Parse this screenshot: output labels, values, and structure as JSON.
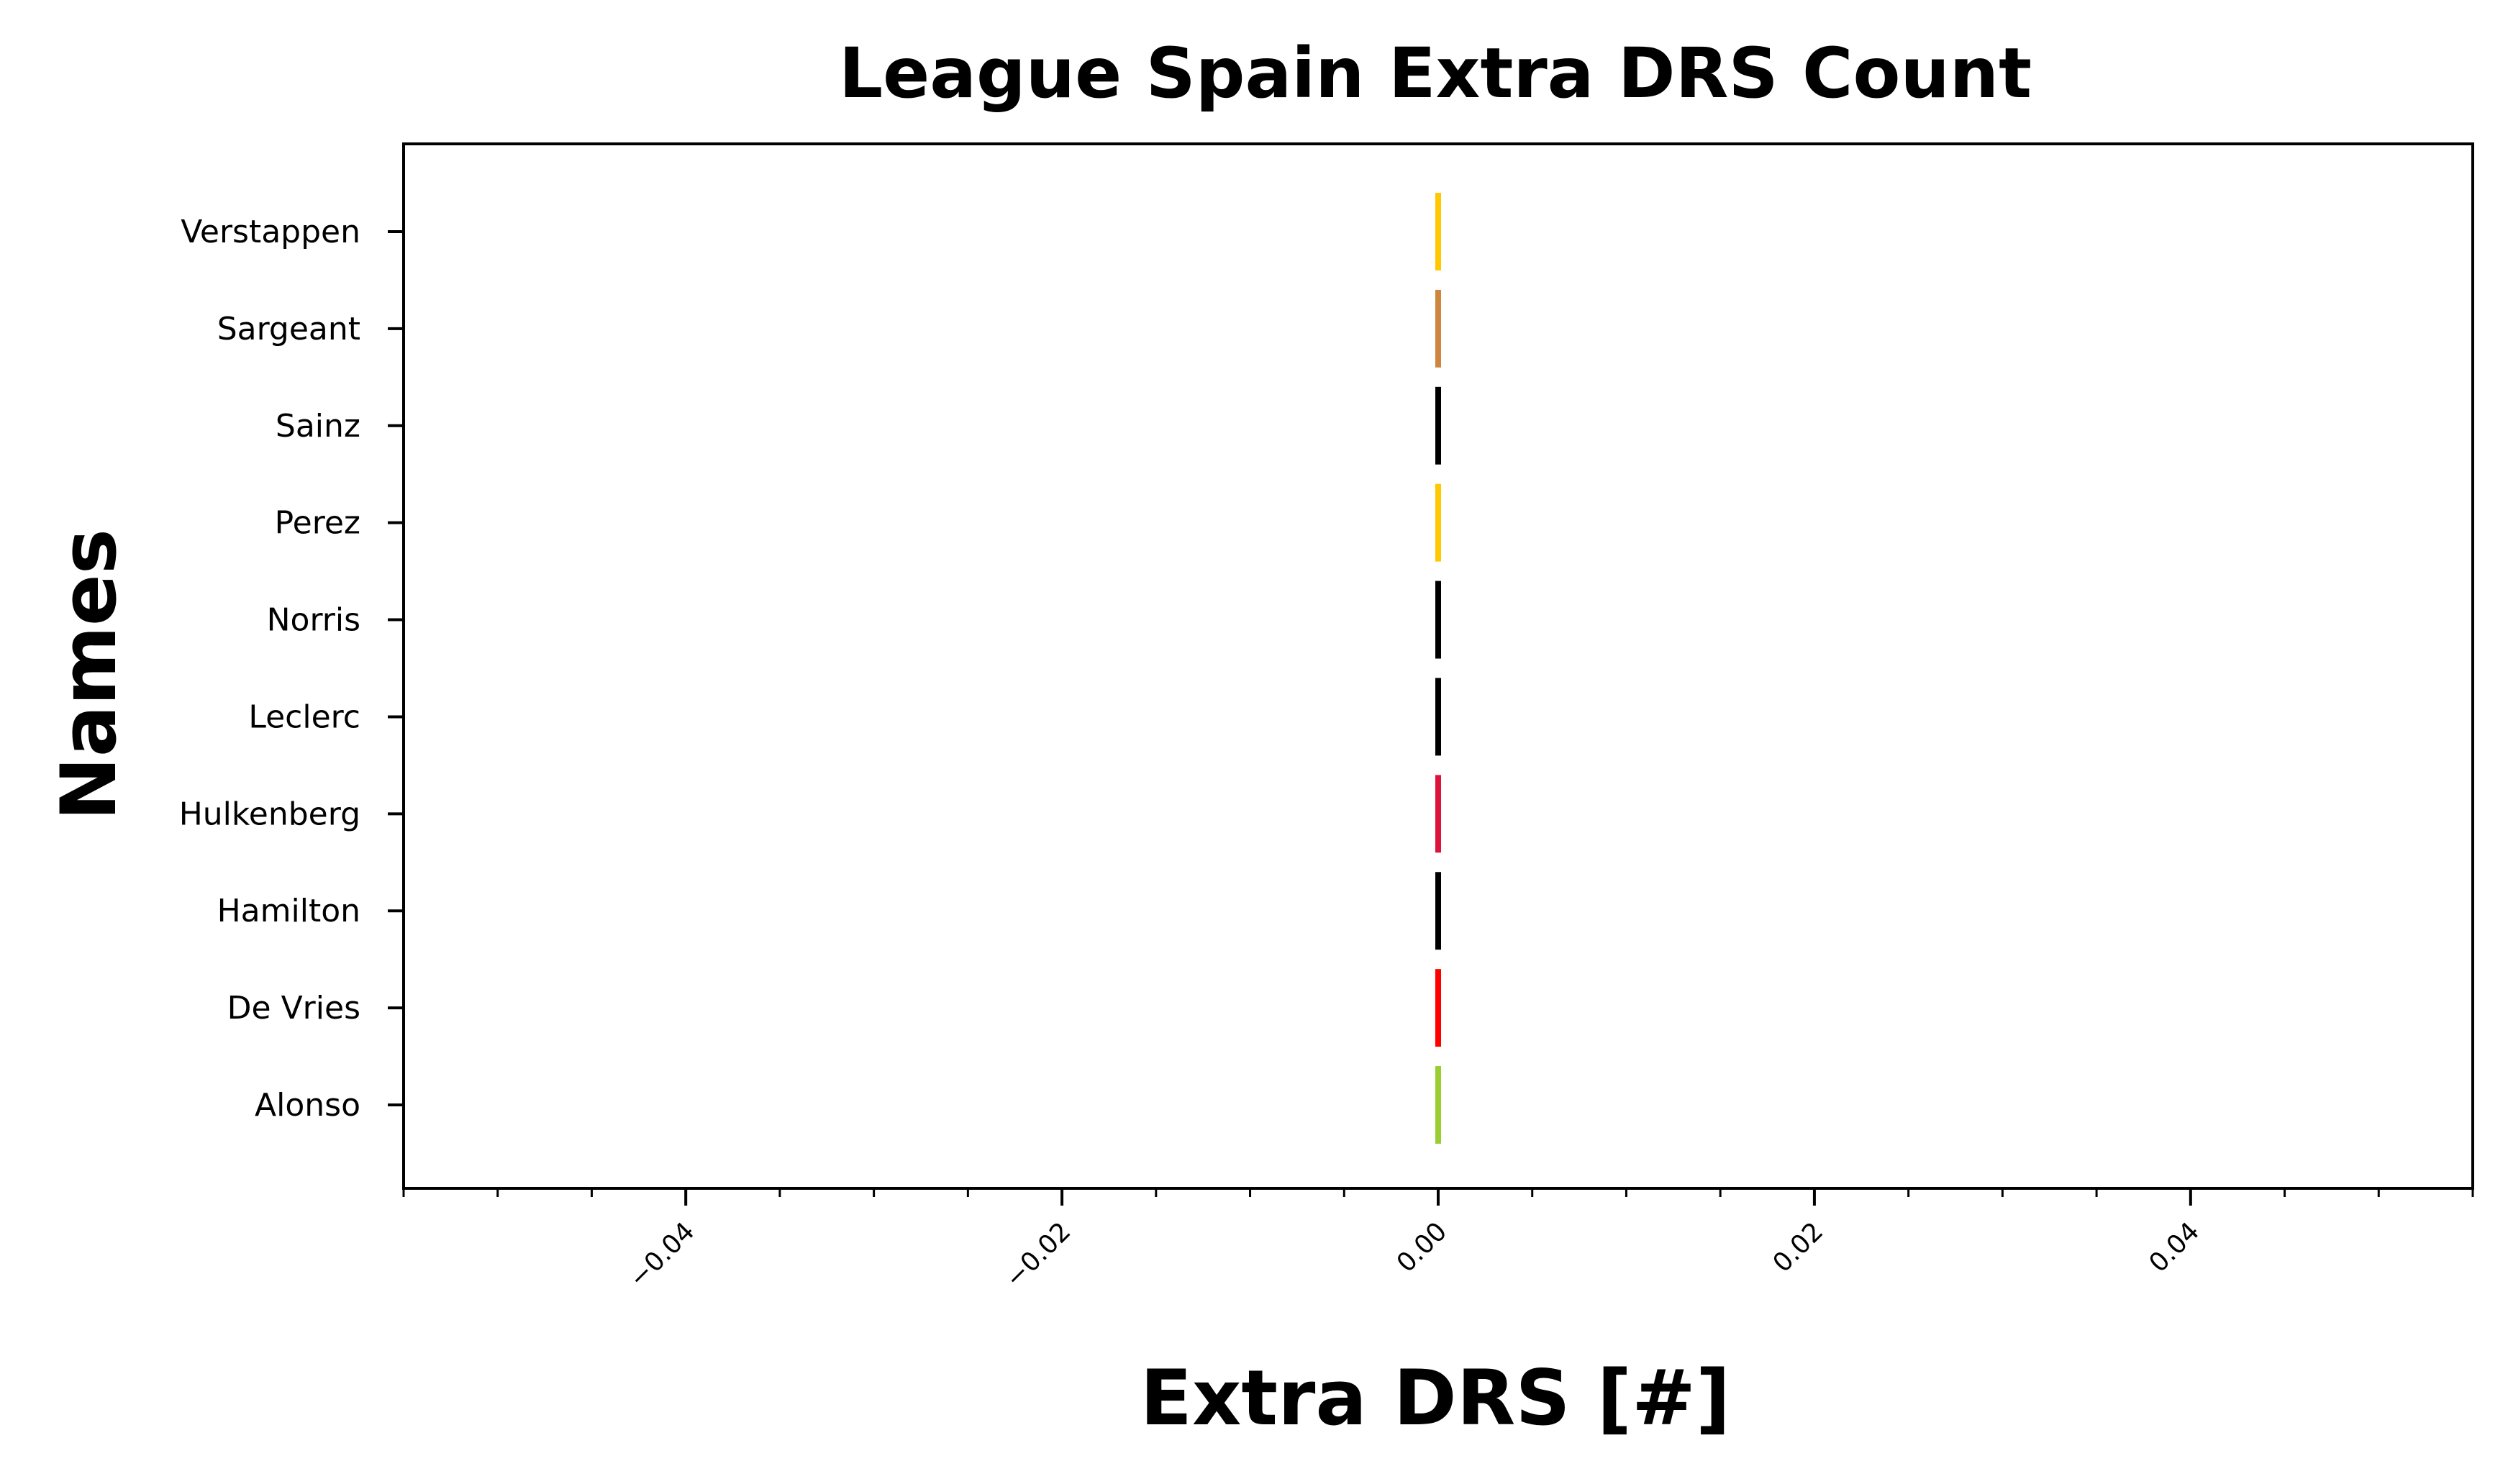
{
  "chart_data": {
    "type": "bar",
    "orientation": "horizontal",
    "title": "League Spain Extra DRS Count",
    "xlabel": "Extra DRS [#]",
    "ylabel": "Names",
    "categories": [
      "Alonso",
      "De Vries",
      "Hamilton",
      "Hulkenberg",
      "Leclerc",
      "Norris",
      "Perez",
      "Sainz",
      "Sargeant",
      "Verstappen"
    ],
    "values": [
      0,
      0,
      0,
      0,
      0,
      0,
      0,
      0,
      0,
      0
    ],
    "colors": [
      "#9acd32",
      "#ff0000",
      "#000000",
      "#dc143c",
      "#000000",
      "#000000",
      "#ffc800",
      "#000000",
      "#cd853f",
      "#ffc800"
    ],
    "xlim": [
      -0.055,
      0.055
    ],
    "xticks": [
      -0.04,
      -0.02,
      0.0,
      0.02,
      0.04
    ],
    "xtick_labels": [
      "−0.04",
      "−0.02",
      "0.00",
      "0.02",
      "0.04"
    ],
    "minor_xtick_step": 0.005,
    "grid": false,
    "legend": "none"
  }
}
